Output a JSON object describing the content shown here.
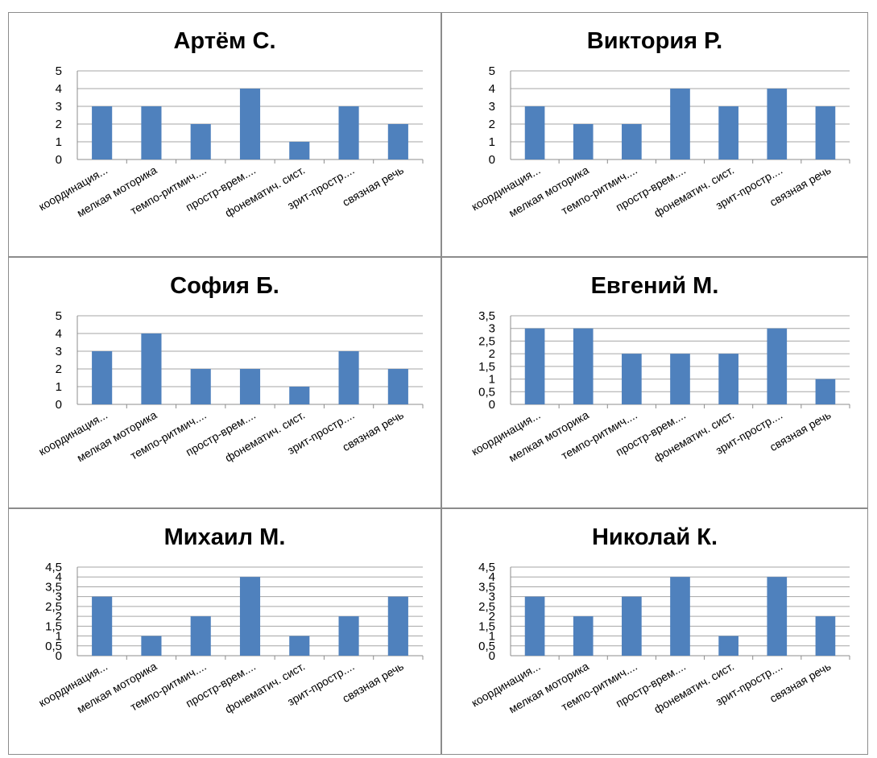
{
  "chart_data": [
    {
      "type": "bar",
      "title": "Артём С.",
      "categories": [
        "координация...",
        "мелкая моторика",
        "темпо-ритмич....",
        "простр-врем....",
        "фонематич. сист.",
        "зрит-простр....",
        "связная речь"
      ],
      "values": [
        3,
        3,
        2,
        4,
        1,
        3,
        2
      ],
      "ylim": [
        0,
        5
      ],
      "yticks": [
        "0",
        "1",
        "2",
        "3",
        "4",
        "5"
      ],
      "grid": true,
      "color": "#4f81bd"
    },
    {
      "type": "bar",
      "title": "Виктория Р.",
      "categories": [
        "координация...",
        "мелкая моторика",
        "темпо-ритмич....",
        "простр-врем....",
        "фонематич. сист.",
        "зрит-простр....",
        "связная речь"
      ],
      "values": [
        3,
        2,
        2,
        4,
        3,
        4,
        3
      ],
      "ylim": [
        0,
        5
      ],
      "yticks": [
        "0",
        "1",
        "2",
        "3",
        "4",
        "5"
      ],
      "grid": true,
      "color": "#4f81bd"
    },
    {
      "type": "bar",
      "title": "София Б.",
      "categories": [
        "координация...",
        "мелкая моторика",
        "темпо-ритмич....",
        "простр-врем....",
        "фонематич. сист.",
        "зрит-простр....",
        "связная речь"
      ],
      "values": [
        3,
        4,
        2,
        2,
        1,
        3,
        2
      ],
      "ylim": [
        0,
        5
      ],
      "yticks": [
        "0",
        "1",
        "2",
        "3",
        "4",
        "5"
      ],
      "grid": true,
      "color": "#4f81bd"
    },
    {
      "type": "bar",
      "title": "Евгений М.",
      "categories": [
        "координация...",
        "мелкая моторика",
        "темпо-ритмич....",
        "простр-врем....",
        "фонематич. сист.",
        "зрит-простр....",
        "связная речь"
      ],
      "values": [
        3,
        3,
        2,
        2,
        2,
        3,
        1
      ],
      "ylim": [
        0,
        3.5
      ],
      "yticks": [
        "0",
        "0,5",
        "1",
        "1,5",
        "2",
        "2,5",
        "3",
        "3,5"
      ],
      "grid": true,
      "color": "#4f81bd"
    },
    {
      "type": "bar",
      "title": "Михаил М.",
      "categories": [
        "координация...",
        "мелкая моторика",
        "темпо-ритмич....",
        "простр-врем....",
        "фонематич. сист.",
        "зрит-простр....",
        "связная речь"
      ],
      "values": [
        3,
        1,
        2,
        4,
        1,
        2,
        3
      ],
      "ylim": [
        0,
        4.5
      ],
      "yticks": [
        "0",
        "0,5",
        "1",
        "1,5",
        "2",
        "2,5",
        "3",
        "3,5",
        "4",
        "4,5"
      ],
      "grid": true,
      "color": "#4f81bd"
    },
    {
      "type": "bar",
      "title": "Николай К.",
      "categories": [
        "координация...",
        "мелкая моторика",
        "темпо-ритмич....",
        "простр-врем....",
        "фонематич. сист.",
        "зрит-простр....",
        "связная речь"
      ],
      "values": [
        3,
        2,
        3,
        4,
        1,
        4,
        2
      ],
      "ylim": [
        0,
        4.5
      ],
      "yticks": [
        "0",
        "0,5",
        "1",
        "1,5",
        "2",
        "2,5",
        "3",
        "3,5",
        "4",
        "4,5"
      ],
      "grid": true,
      "color": "#4f81bd"
    }
  ]
}
